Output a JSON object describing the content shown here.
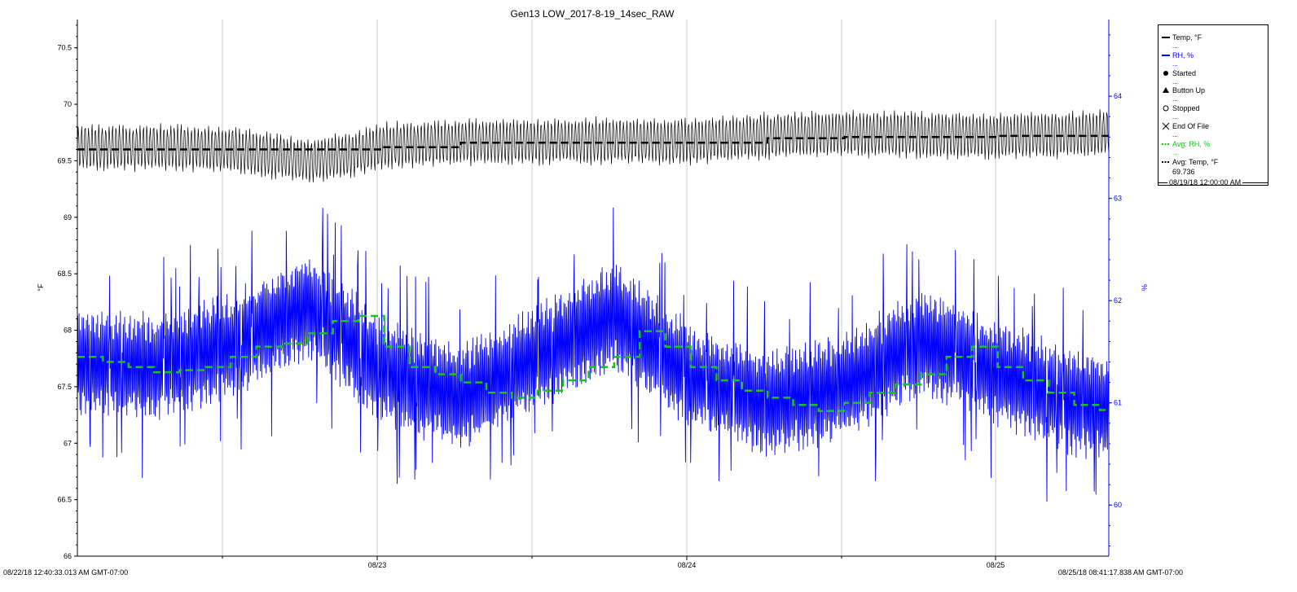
{
  "chart_data": {
    "type": "line",
    "title": "Gen13 LOW_2017-8-19_14sec_RAW",
    "ylabel_left": "°F",
    "ylabel_right": "%",
    "ylim_left": [
      66,
      70.75
    ],
    "ylim_right": [
      59.5,
      64.75
    ],
    "y_ticks_left": [
      "66",
      "66.5",
      "67",
      "67.5",
      "68",
      "68.5",
      "69",
      "69.5",
      "70",
      "70.5"
    ],
    "y_ticks_right": [
      "60",
      "61",
      "62",
      "63",
      "64"
    ],
    "x_tick_labels": [
      "08/23",
      "08/24",
      "08/25"
    ],
    "x_start_label": "08/22/18 12:40:33.013 AM GMT-07:00",
    "x_end_label": "08/25/18 08:41:17.838 AM GMT-07:00",
    "grid": "vertical",
    "legend_position": "right",
    "colors": {
      "temp": "#000000",
      "rh": "#0000ff",
      "avg_rh": "#19c419",
      "avg_temp": "#000000"
    },
    "series": [
      {
        "name": "Temp, °F",
        "axis": "left",
        "x_hours": [
          0,
          6,
          12,
          18,
          21,
          24,
          30,
          36,
          42,
          48,
          54,
          60,
          66,
          72,
          78,
          80.7
        ],
        "mean": [
          69.62,
          69.62,
          69.6,
          69.5,
          69.55,
          69.63,
          69.67,
          69.67,
          69.68,
          69.67,
          69.72,
          69.74,
          69.73,
          69.72,
          69.73,
          69.75
        ],
        "amplitude": 0.22
      },
      {
        "name": "RH, %",
        "axis": "right",
        "x_hours": [
          0,
          6,
          12,
          18,
          24,
          30,
          36,
          42,
          48,
          54,
          60,
          66,
          72,
          78,
          80.7
        ],
        "mean": [
          61.4,
          61.35,
          61.55,
          61.95,
          61.3,
          61.05,
          61.45,
          61.85,
          61.25,
          61.0,
          61.15,
          61.6,
          61.3,
          61.0,
          60.95
        ],
        "amplitude": 0.55
      },
      {
        "name": "Avg: RH, %",
        "axis": "right",
        "step": true,
        "x_hours": [
          0,
          2,
          4,
          6,
          8,
          10,
          12,
          14,
          16,
          18,
          20,
          22,
          24,
          26,
          28,
          30,
          32,
          34,
          36,
          38,
          40,
          42,
          44,
          46,
          48,
          50,
          52,
          54,
          56,
          58,
          60,
          62,
          64,
          66,
          68,
          70,
          72,
          74,
          76,
          78,
          80
        ],
        "values": [
          61.45,
          61.4,
          61.35,
          61.3,
          61.32,
          61.35,
          61.45,
          61.55,
          61.58,
          61.68,
          61.8,
          61.85,
          61.55,
          61.35,
          61.28,
          61.2,
          61.1,
          61.05,
          61.12,
          61.22,
          61.35,
          61.45,
          61.7,
          61.55,
          61.35,
          61.22,
          61.12,
          61.05,
          60.98,
          60.92,
          61.0,
          61.1,
          61.18,
          61.28,
          61.45,
          61.55,
          61.35,
          61.22,
          61.1,
          60.98,
          60.93
        ]
      },
      {
        "name": "Avg: Temp, °F",
        "axis": "left",
        "step": true,
        "x_hours": [
          0,
          6,
          12,
          18,
          24,
          30,
          36,
          42,
          48,
          54,
          60,
          66,
          72,
          78
        ],
        "values": [
          69.6,
          69.6,
          69.6,
          69.6,
          69.62,
          69.66,
          69.66,
          69.66,
          69.66,
          69.7,
          69.71,
          69.71,
          69.72,
          69.72
        ]
      }
    ]
  },
  "legend": {
    "items": [
      {
        "label": "Temp, °F",
        "dots": "...",
        "color": "#000000",
        "symbol": "line"
      },
      {
        "label": "RH, %",
        "dots": "...",
        "color": "#0000ff",
        "symbol": "line"
      },
      {
        "label": "Started",
        "dots": "...",
        "color": "#000000",
        "symbol": "filled-circle"
      },
      {
        "label": "Button Up",
        "dots": "...",
        "color": "#000000",
        "symbol": "filled-triangle"
      },
      {
        "label": "Stopped",
        "dots": "...",
        "color": "#000000",
        "symbol": "open-circle"
      },
      {
        "label": "End Of File",
        "dots": "...",
        "color": "#000000",
        "symbol": "cross"
      },
      {
        "label": "Avg: RH, %",
        "dots": "...",
        "color": "#19c419",
        "symbol": "dashed-line"
      },
      {
        "label": "Avg: Temp, °F",
        "dots": "",
        "color": "#000000",
        "symbol": "dashed-line"
      }
    ],
    "avg_temp_value": "69.736",
    "footer_time": "08/19/18 12:00:00 AM"
  }
}
